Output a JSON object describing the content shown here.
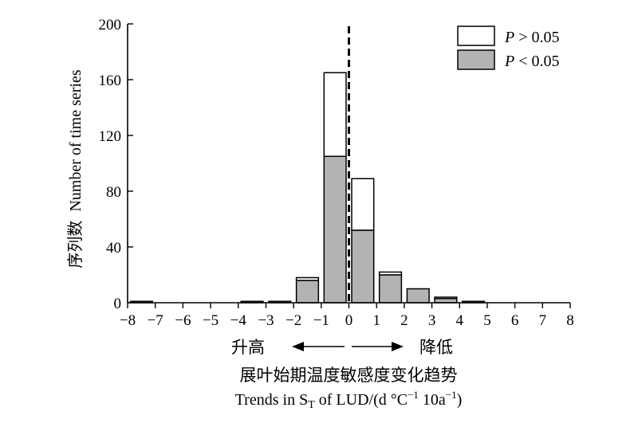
{
  "chart_data": {
    "type": "bar",
    "bin_edges": [
      -8,
      -7,
      -6,
      -5,
      -4,
      -3,
      -2,
      -1,
      0,
      1,
      2,
      3,
      4,
      5,
      6,
      7,
      8
    ],
    "series": [
      {
        "name": "P < 0.05",
        "values": [
          1,
          0,
          0,
          0,
          1,
          1,
          16,
          105,
          52,
          20,
          10,
          3,
          1,
          0,
          0,
          0
        ],
        "fill": "#b3b3b3"
      },
      {
        "name": "P > 0.05",
        "values": [
          0,
          0,
          0,
          0,
          0,
          0,
          2,
          60,
          37,
          2,
          0,
          1,
          0,
          0,
          0,
          0
        ],
        "fill": "#ffffff"
      }
    ],
    "stacked": true,
    "xlim": [
      -8,
      8
    ],
    "ylim": [
      0,
      200
    ],
    "xticks": [
      "−8",
      "−7",
      "−6",
      "−5",
      "−4",
      "−3",
      "−2",
      "−1",
      "0",
      "1",
      "2",
      "3",
      "4",
      "5",
      "6",
      "7",
      "8"
    ],
    "yticks": [
      "0",
      "40",
      "80",
      "120",
      "160",
      "200"
    ],
    "ylabel_cn": "序列数",
    "ylabel_en": "Number of time series",
    "xlabel_cn": "展叶始期温度敏感度变化趋势",
    "xlabel_en": "Trends in S",
    "xlabel_en_sub": "T",
    "xlabel_en_rest": " of LUD/(d °C",
    "xlabel_en_sup1": "−1",
    "xlabel_en_mid": " 10a",
    "xlabel_en_sup2": "−1",
    "xlabel_en_end": ")",
    "legend": [
      {
        "italic": "P",
        "text": " > 0.05",
        "fill": "#ffffff"
      },
      {
        "italic": "P",
        "text": " < 0.05",
        "fill": "#b3b3b3"
      }
    ],
    "legend_position": "top-right",
    "annotation_left": "升高",
    "annotation_right": "降低",
    "reference_line_x": 0,
    "grid": false
  }
}
